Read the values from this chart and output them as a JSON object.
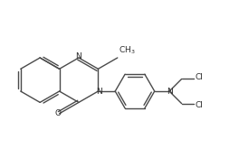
{
  "bg_color": "#ffffff",
  "line_color": "#4a4a4a",
  "text_color": "#2a2a2a",
  "lw": 1.0,
  "fs": 6.5,
  "xlim": [
    0,
    8.5
  ],
  "ylim": [
    0,
    5.2
  ]
}
